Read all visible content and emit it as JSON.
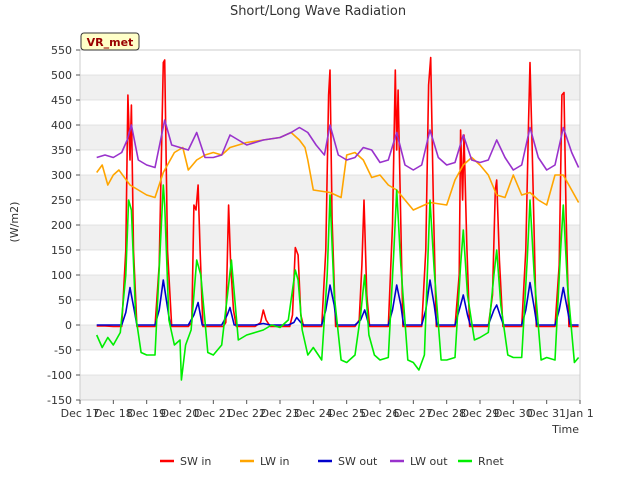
{
  "chart_data": {
    "type": "line",
    "title": "Short/Long Wave Radiation",
    "xlabel": "Time",
    "ylabel": "(W/m2)",
    "site_label": "VR_met",
    "x_ticks": [
      "Dec 17",
      "Dec 18",
      "Dec 19",
      "Dec 20",
      "Dec 21",
      "Dec 22",
      "Dec 23",
      "Dec 24",
      "Dec 25",
      "Dec 26",
      "Dec 27",
      "Dec 28",
      "Dec 29",
      "Dec 30",
      "Dec 31",
      "Jan 1"
    ],
    "y_ticks": [
      -150,
      -100,
      -50,
      0,
      50,
      100,
      150,
      200,
      250,
      300,
      350,
      400,
      450,
      500,
      550
    ],
    "ylim": [
      -150,
      550
    ],
    "xlim": [
      "2023-12-17",
      "2024-01-01"
    ],
    "grid": "horizontal bands",
    "legend_position": "bottom",
    "series": [
      {
        "name": "SW in",
        "color": "#ff0000",
        "x": [
          "2023-12-17 12:00",
          "2023-12-17 18:00",
          "2023-12-18 00:00",
          "2023-12-18 06:00",
          "2023-12-18 09:00",
          "2023-12-18 10:30",
          "2023-12-18 12:00",
          "2023-12-18 13:00",
          "2023-12-18 14:30",
          "2023-12-18 17:00",
          "2023-12-19 06:00",
          "2023-12-19 09:00",
          "2023-12-19 12:00",
          "2023-12-19 13:00",
          "2023-12-19 15:00",
          "2023-12-19 18:00",
          "2023-12-20 06:00",
          "2023-12-20 08:30",
          "2023-12-20 10:00",
          "2023-12-20 11:30",
          "2023-12-20 13:00",
          "2023-12-20 14:30",
          "2023-12-20 16:30",
          "2023-12-21 07:00",
          "2023-12-21 09:00",
          "2023-12-21 11:00",
          "2023-12-21 12:30",
          "2023-12-21 14:30",
          "2023-12-21 16:30",
          "2023-12-22 06:00",
          "2023-12-22 10:00",
          "2023-12-22 12:00",
          "2023-12-22 14:00",
          "2023-12-22 17:00",
          "2023-12-23 07:00",
          "2023-12-23 09:00",
          "2023-12-23 11:00",
          "2023-12-23 13:00",
          "2023-12-23 15:00",
          "2023-12-23 17:00",
          "2023-12-24 06:00",
          "2023-12-24 09:00",
          "2023-12-24 11:00",
          "2023-12-24 12:00",
          "2023-12-24 13:30",
          "2023-12-24 16:00",
          "2023-12-25 06:00",
          "2023-12-25 09:00",
          "2023-12-25 11:00",
          "2023-12-25 12:30",
          "2023-12-25 14:30",
          "2023-12-25 16:30",
          "2023-12-26 06:00",
          "2023-12-26 09:00",
          "2023-12-26 11:00",
          "2023-12-26 12:00",
          "2023-12-26 13:00",
          "2023-12-26 16:30",
          "2023-12-27 06:00",
          "2023-12-27 09:00",
          "2023-12-27 11:00",
          "2023-12-27 12:30",
          "2023-12-27 14:30",
          "2023-12-27 16:30",
          "2023-12-28 06:00",
          "2023-12-28 09:00",
          "2023-12-28 10:00",
          "2023-12-28 11:30",
          "2023-12-28 12:30",
          "2023-12-28 14:30",
          "2023-12-28 16:30",
          "2023-12-29 06:00",
          "2023-12-29 09:00",
          "2023-12-29 11:00",
          "2023-12-29 12:00",
          "2023-12-29 14:00",
          "2023-12-29 16:30",
          "2023-12-30 06:00",
          "2023-12-30 09:00",
          "2023-12-30 11:00",
          "2023-12-30 12:00",
          "2023-12-30 13:30",
          "2023-12-30 16:30",
          "2023-12-31 06:00",
          "2023-12-31 09:00",
          "2023-12-31 11:00",
          "2023-12-31 12:30",
          "2023-12-31 14:00",
          "2023-12-31 16:00",
          "2023-12-31 23:00"
        ],
        "y": [
          -2,
          -2,
          -3,
          -3,
          150,
          460,
          330,
          440,
          150,
          -3,
          -3,
          120,
          525,
          530,
          150,
          -3,
          -3,
          5,
          240,
          230,
          280,
          150,
          -3,
          -3,
          5,
          240,
          120,
          30,
          -3,
          -3,
          5,
          30,
          10,
          -3,
          -3,
          20,
          155,
          140,
          20,
          -3,
          -3,
          150,
          460,
          510,
          210,
          -3,
          -3,
          10,
          120,
          250,
          60,
          -3,
          -3,
          200,
          510,
          350,
          470,
          -3,
          -3,
          150,
          480,
          535,
          230,
          -3,
          -3,
          100,
          390,
          250,
          380,
          160,
          -3,
          -3,
          60,
          270,
          290,
          130,
          -3,
          -3,
          150,
          410,
          525,
          360,
          -3,
          -3,
          120,
          460,
          465,
          220,
          -3,
          -3
        ]
      },
      {
        "name": "LW in",
        "color": "#ffa500",
        "x": [
          "2023-12-17 12:00",
          "2023-12-17 16:00",
          "2023-12-17 20:00",
          "2023-12-18 00:00",
          "2023-12-18 04:00",
          "2023-12-18 12:00",
          "2023-12-19 00:00",
          "2023-12-19 06:00",
          "2023-12-19 12:00",
          "2023-12-19 20:00",
          "2023-12-20 02:00",
          "2023-12-20 06:00",
          "2023-12-20 12:00",
          "2023-12-20 18:00",
          "2023-12-21 00:00",
          "2023-12-21 06:00",
          "2023-12-21 12:00",
          "2023-12-22 00:00",
          "2023-12-22 12:00",
          "2023-12-23 00:00",
          "2023-12-23 08:00",
          "2023-12-23 14:00",
          "2023-12-23 18:00",
          "2023-12-23 20:00",
          "2023-12-24 00:00",
          "2023-12-24 12:00",
          "2023-12-24 20:00",
          "2023-12-25 00:00",
          "2023-12-25 06:00",
          "2023-12-25 12:00",
          "2023-12-25 18:00",
          "2023-12-26 00:00",
          "2023-12-26 06:00",
          "2023-12-26 12:00",
          "2023-12-26 18:00",
          "2023-12-27 00:00",
          "2023-12-27 12:00",
          "2023-12-28 00:00",
          "2023-12-28 06:00",
          "2023-12-28 12:00",
          "2023-12-28 18:00",
          "2023-12-29 00:00",
          "2023-12-29 06:00",
          "2023-12-29 12:00",
          "2023-12-29 18:00",
          "2023-12-30 00:00",
          "2023-12-30 06:00",
          "2023-12-30 12:00",
          "2023-12-30 18:00",
          "2023-12-31 00:00",
          "2023-12-31 06:00",
          "2023-12-31 12:00",
          "2023-12-31 23:00"
        ],
        "y": [
          305,
          320,
          280,
          300,
          310,
          280,
          260,
          255,
          305,
          345,
          355,
          310,
          330,
          340,
          345,
          340,
          355,
          365,
          370,
          375,
          385,
          370,
          355,
          330,
          270,
          265,
          255,
          340,
          345,
          330,
          295,
          300,
          280,
          270,
          250,
          230,
          245,
          240,
          290,
          320,
          335,
          320,
          300,
          260,
          255,
          300,
          260,
          265,
          250,
          240,
          300,
          300,
          245
        ]
      },
      {
        "name": "SW out",
        "color": "#0000cc",
        "x": [
          "2023-12-17 12:00",
          "2023-12-17 18:00",
          "2023-12-18 00:00",
          "2023-12-18 06:00",
          "2023-12-18 09:00",
          "2023-12-18 12:00",
          "2023-12-18 15:00",
          "2023-12-18 17:00",
          "2023-12-19 06:00",
          "2023-12-19 09:00",
          "2023-12-19 12:00",
          "2023-12-19 15:00",
          "2023-12-19 17:00",
          "2023-12-20 06:00",
          "2023-12-20 10:00",
          "2023-12-20 13:00",
          "2023-12-20 16:00",
          "2023-12-21 06:00",
          "2023-12-21 10:00",
          "2023-12-21 12:00",
          "2023-12-21 15:00",
          "2023-12-22 06:00",
          "2023-12-22 12:00",
          "2023-12-22 17:00",
          "2023-12-23 06:00",
          "2023-12-23 10:00",
          "2023-12-23 12:00",
          "2023-12-23 15:00",
          "2023-12-23 17:00",
          "2023-12-24 06:00",
          "2023-12-24 09:00",
          "2023-12-24 12:00",
          "2023-12-24 15:00",
          "2023-12-24 17:00",
          "2023-12-25 06:00",
          "2023-12-25 10:00",
          "2023-12-25 13:00",
          "2023-12-25 16:00",
          "2023-12-26 06:00",
          "2023-12-26 09:00",
          "2023-12-26 12:00",
          "2023-12-26 15:00",
          "2023-12-26 17:00",
          "2023-12-27 06:00",
          "2023-12-27 09:00",
          "2023-12-27 12:00",
          "2023-12-27 15:00",
          "2023-12-27 17:00",
          "2023-12-28 06:00",
          "2023-12-28 10:00",
          "2023-12-28 12:00",
          "2023-12-28 15:00",
          "2023-12-28 17:00",
          "2023-12-29 06:00",
          "2023-12-29 10:00",
          "2023-12-29 12:00",
          "2023-12-29 15:00",
          "2023-12-29 17:00",
          "2023-12-30 06:00",
          "2023-12-30 09:00",
          "2023-12-30 12:00",
          "2023-12-30 15:00",
          "2023-12-30 17:00",
          "2023-12-31 06:00",
          "2023-12-31 09:00",
          "2023-12-31 12:00",
          "2023-12-31 15:00",
          "2023-12-31 17:00",
          "2023-12-31 23:00"
        ],
        "y": [
          0,
          0,
          0,
          0,
          25,
          75,
          30,
          0,
          0,
          30,
          90,
          35,
          0,
          0,
          20,
          45,
          0,
          0,
          20,
          35,
          0,
          0,
          3,
          0,
          0,
          5,
          15,
          5,
          0,
          0,
          30,
          80,
          40,
          0,
          0,
          10,
          30,
          0,
          0,
          30,
          80,
          40,
          0,
          0,
          30,
          90,
          40,
          0,
          0,
          40,
          60,
          20,
          0,
          0,
          30,
          40,
          15,
          0,
          0,
          30,
          85,
          35,
          0,
          0,
          30,
          75,
          30,
          0,
          0
        ]
      },
      {
        "name": "LW out",
        "color": "#9932cc",
        "x": [
          "2023-12-17 12:00",
          "2023-12-17 18:00",
          "2023-12-18 00:00",
          "2023-12-18 06:00",
          "2023-12-18 10:00",
          "2023-12-18 13:00",
          "2023-12-18 18:00",
          "2023-12-19 00:00",
          "2023-12-19 06:00",
          "2023-12-19 13:00",
          "2023-12-19 18:00",
          "2023-12-20 00:00",
          "2023-12-20 06:00",
          "2023-12-20 12:00",
          "2023-12-20 18:00",
          "2023-12-21 00:00",
          "2023-12-21 06:00",
          "2023-12-21 12:00",
          "2023-12-22 00:00",
          "2023-12-22 12:00",
          "2023-12-23 00:00",
          "2023-12-23 08:00",
          "2023-12-23 14:00",
          "2023-12-23 20:00",
          "2023-12-24 02:00",
          "2023-12-24 08:00",
          "2023-12-24 12:00",
          "2023-12-24 18:00",
          "2023-12-25 00:00",
          "2023-12-25 06:00",
          "2023-12-25 12:00",
          "2023-12-25 18:00",
          "2023-12-26 00:00",
          "2023-12-26 06:00",
          "2023-12-26 12:00",
          "2023-12-26 18:00",
          "2023-12-27 00:00",
          "2023-12-27 06:00",
          "2023-12-27 12:00",
          "2023-12-27 18:00",
          "2023-12-28 00:00",
          "2023-12-28 06:00",
          "2023-12-28 12:00",
          "2023-12-28 18:00",
          "2023-12-29 00:00",
          "2023-12-29 06:00",
          "2023-12-29 12:00",
          "2023-12-29 18:00",
          "2023-12-30 00:00",
          "2023-12-30 06:00",
          "2023-12-30 12:00",
          "2023-12-30 18:00",
          "2023-12-31 00:00",
          "2023-12-31 06:00",
          "2023-12-31 12:00",
          "2023-12-31 18:00",
          "2023-12-31 23:00"
        ],
        "y": [
          335,
          340,
          335,
          345,
          370,
          400,
          330,
          320,
          315,
          410,
          360,
          355,
          350,
          385,
          335,
          335,
          340,
          380,
          360,
          370,
          375,
          385,
          395,
          385,
          360,
          340,
          400,
          340,
          330,
          335,
          355,
          350,
          325,
          330,
          385,
          320,
          310,
          320,
          390,
          335,
          320,
          325,
          380,
          330,
          325,
          330,
          370,
          335,
          310,
          320,
          395,
          335,
          310,
          320,
          395,
          345,
          315
        ]
      },
      {
        "name": "Rnet",
        "color": "#00ee00",
        "x": [
          "2023-12-17 12:00",
          "2023-12-17 16:00",
          "2023-12-17 20:00",
          "2023-12-18 00:00",
          "2023-12-18 05:00",
          "2023-12-18 09:00",
          "2023-12-18 11:00",
          "2023-12-18 13:00",
          "2023-12-18 16:00",
          "2023-12-18 20:00",
          "2023-12-19 00:00",
          "2023-12-19 06:00",
          "2023-12-19 12:00",
          "2023-12-19 13:00",
          "2023-12-19 16:00",
          "2023-12-19 20:00",
          "2023-12-20 00:00",
          "2023-12-20 01:00",
          "2023-12-20 04:00",
          "2023-12-20 08:00",
          "2023-12-20 12:00",
          "2023-12-20 15:00",
          "2023-12-20 20:00",
          "2023-12-21 00:00",
          "2023-12-21 06:00",
          "2023-12-21 11:00",
          "2023-12-21 13:00",
          "2023-12-21 18:00",
          "2023-12-22 00:00",
          "2023-12-22 06:00",
          "2023-12-22 12:00",
          "2023-12-22 18:00",
          "2023-12-23 00:00",
          "2023-12-23 06:00",
          "2023-12-23 11:00",
          "2023-12-23 13:00",
          "2023-12-23 16:00",
          "2023-12-23 20:00",
          "2023-12-24 00:00",
          "2023-12-24 06:00",
          "2023-12-24 10:00",
          "2023-12-24 12:00",
          "2023-12-24 15:00",
          "2023-12-24 20:00",
          "2023-12-25 00:00",
          "2023-12-25 06:00",
          "2023-12-25 10:00",
          "2023-12-25 13:00",
          "2023-12-25 16:00",
          "2023-12-25 20:00",
          "2023-12-26 00:00",
          "2023-12-26 06:00",
          "2023-12-26 10:00",
          "2023-12-26 12:00",
          "2023-12-26 15:00",
          "2023-12-26 20:00",
          "2023-12-27 00:00",
          "2023-12-27 04:00",
          "2023-12-27 08:00",
          "2023-12-27 12:00",
          "2023-12-27 15:00",
          "2023-12-27 20:00",
          "2023-12-28 00:00",
          "2023-12-28 06:00",
          "2023-12-28 10:00",
          "2023-12-28 12:00",
          "2023-12-28 15:00",
          "2023-12-28 20:00",
          "2023-12-29 00:00",
          "2023-12-29 06:00",
          "2023-12-29 10:00",
          "2023-12-29 12:00",
          "2023-12-29 15:00",
          "2023-12-29 20:00",
          "2023-12-30 00:00",
          "2023-12-30 06:00",
          "2023-12-30 10:00",
          "2023-12-30 12:00",
          "2023-12-30 15:00",
          "2023-12-30 20:00",
          "2023-12-31 00:00",
          "2023-12-31 06:00",
          "2023-12-31 10:00",
          "2023-12-31 12:00",
          "2023-12-31 15:00",
          "2023-12-31 20:00",
          "2023-12-31 23:00"
        ],
        "y": [
          -20,
          -45,
          -25,
          -40,
          -15,
          100,
          250,
          230,
          20,
          -55,
          -60,
          -60,
          280,
          240,
          10,
          -40,
          -30,
          -110,
          -40,
          -10,
          130,
          100,
          -55,
          -60,
          -40,
          80,
          130,
          -30,
          -20,
          -15,
          -10,
          0,
          -5,
          10,
          110,
          90,
          -10,
          -60,
          -45,
          -70,
          100,
          260,
          60,
          -70,
          -75,
          -60,
          20,
          100,
          -20,
          -60,
          -70,
          -65,
          150,
          270,
          120,
          -70,
          -75,
          -90,
          -60,
          250,
          110,
          -70,
          -70,
          -65,
          120,
          190,
          60,
          -30,
          -25,
          -15,
          100,
          150,
          40,
          -60,
          -65,
          -65,
          130,
          250,
          100,
          -70,
          -65,
          -70,
          150,
          240,
          80,
          -75,
          -65
        ]
      }
    ]
  }
}
